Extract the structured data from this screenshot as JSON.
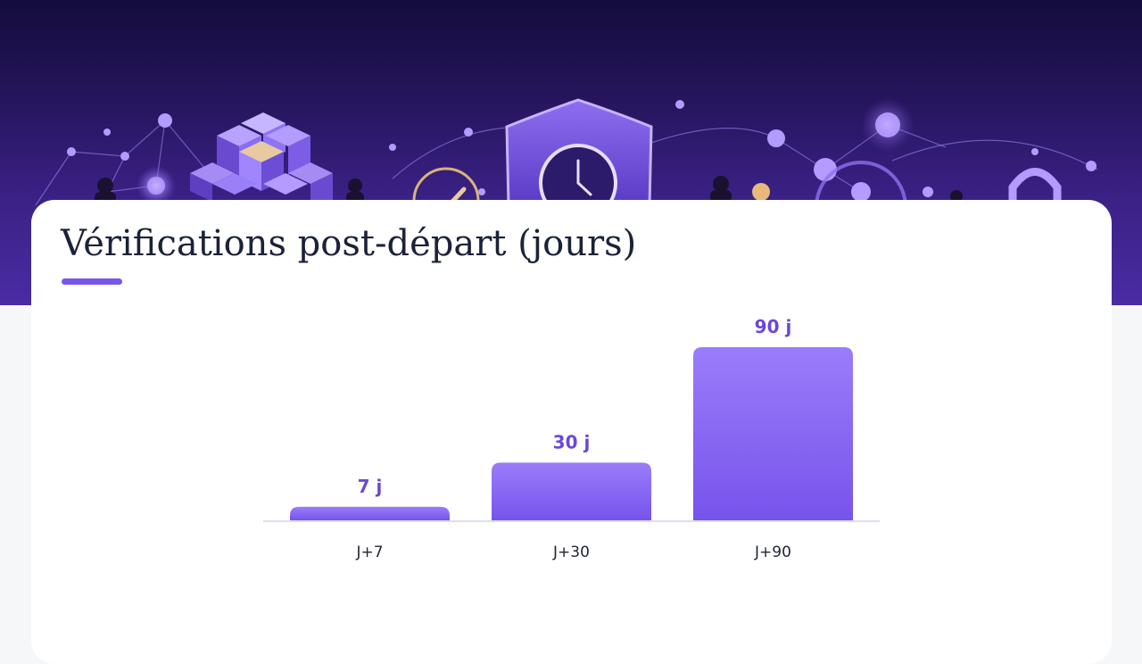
{
  "title": "Vérifications post-départ (jours)",
  "colors": {
    "accent": "#7a55ea",
    "bar_top": "#9a7dfa",
    "bar_bottom": "#7753ec",
    "value_label": "#6a48d8",
    "banner_dark": "#140c3c",
    "banner_light": "#4a2ca3"
  },
  "banner": {
    "icons": [
      "network-nodes-icon",
      "cubes-icon",
      "shield-clock-icon",
      "padlock-icon",
      "person-icon"
    ]
  },
  "chart_data": {
    "type": "bar",
    "categories": [
      "J+7",
      "J+30",
      "J+90"
    ],
    "values": [
      7,
      30,
      90
    ],
    "data_labels": [
      "7 j",
      "30 j",
      "90 j"
    ],
    "title": "Vérifications post-départ (jours)",
    "xlabel": "",
    "ylabel": "",
    "ylim": [
      0,
      90
    ],
    "grid": false,
    "legend": "none"
  }
}
